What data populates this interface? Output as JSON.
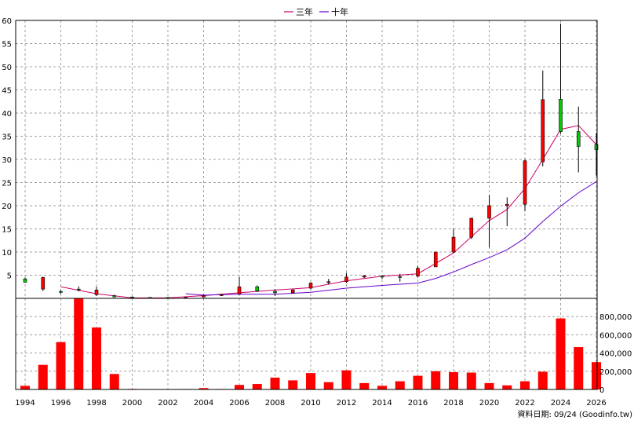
{
  "chart_data": {
    "type": "candlestick+line+bar",
    "legend": [
      {
        "name": "三年",
        "color": "#cc0066"
      },
      {
        "name": "十年",
        "color": "#6600cc"
      }
    ],
    "legend_position": "top-center",
    "grid": true,
    "price_panel": {
      "ylim": [
        0,
        60
      ],
      "yticks": [
        5,
        10,
        15,
        20,
        25,
        30,
        35,
        40,
        45,
        50,
        55,
        60
      ],
      "candles": [
        {
          "year": 1994,
          "open": 4.2,
          "close": 3.5,
          "high": 4.5,
          "low": 3.4
        },
        {
          "year": 1995,
          "open": 2.0,
          "close": 4.5,
          "high": 4.7,
          "low": 1.6
        },
        {
          "year": 1996,
          "open": 1.5,
          "close": 1.3,
          "high": 1.8,
          "low": 1.0
        },
        {
          "year": 1997,
          "open": 2.0,
          "close": 1.8,
          "high": 2.6,
          "low": 1.5
        },
        {
          "year": 1998,
          "open": 0.8,
          "close": 1.8,
          "high": 2.5,
          "low": 0.5
        },
        {
          "year": 1999,
          "open": 0.6,
          "close": 0.3,
          "high": 0.8,
          "low": 0.2
        },
        {
          "year": 2000,
          "open": 0.3,
          "close": 0.2,
          "high": 0.4,
          "low": 0.1
        },
        {
          "year": 2001,
          "open": 0.2,
          "close": 0.1,
          "high": 0.3,
          "low": 0.05
        },
        {
          "year": 2002,
          "open": 0.2,
          "close": 0.1,
          "high": 0.3,
          "low": 0.05
        },
        {
          "year": 2003,
          "open": 0.1,
          "close": 0.2,
          "high": 0.3,
          "low": 0.05
        },
        {
          "year": 2004,
          "open": 0.3,
          "close": 0.6,
          "high": 0.8,
          "low": 0.2
        },
        {
          "year": 2005,
          "open": 0.6,
          "close": 0.8,
          "high": 1.0,
          "low": 0.5
        },
        {
          "year": 2006,
          "open": 1.0,
          "close": 2.5,
          "high": 4.6,
          "low": 0.8
        },
        {
          "year": 2007,
          "open": 2.5,
          "close": 1.6,
          "high": 2.8,
          "low": 1.4
        },
        {
          "year": 2008,
          "open": 1.5,
          "close": 1.2,
          "high": 2.0,
          "low": 0.5
        },
        {
          "year": 2009,
          "open": 1.2,
          "close": 1.8,
          "high": 2.0,
          "low": 1.0
        },
        {
          "year": 2010,
          "open": 2.2,
          "close": 3.3,
          "high": 3.5,
          "low": 2.0
        },
        {
          "year": 2011,
          "open": 3.4,
          "close": 3.6,
          "high": 4.2,
          "low": 3.0
        },
        {
          "year": 2012,
          "open": 3.6,
          "close": 4.6,
          "high": 5.5,
          "low": 3.3
        },
        {
          "year": 2013,
          "open": 4.6,
          "close": 4.9,
          "high": 5.0,
          "low": 4.4
        },
        {
          "year": 2014,
          "open": 4.8,
          "close": 4.6,
          "high": 5.0,
          "low": 4.2
        },
        {
          "year": 2015,
          "open": 4.6,
          "close": 4.7,
          "high": 5.3,
          "low": 3.6
        },
        {
          "year": 2016,
          "open": 4.8,
          "close": 6.5,
          "high": 7.0,
          "low": 4.5
        },
        {
          "year": 2017,
          "open": 6.8,
          "close": 10.0,
          "high": 10.0,
          "low": 6.8
        },
        {
          "year": 2018,
          "open": 10.0,
          "close": 13.2,
          "high": 15.0,
          "low": 9.8
        },
        {
          "year": 2019,
          "open": 13.2,
          "close": 17.3,
          "high": 17.4,
          "low": 12.8
        },
        {
          "year": 2020,
          "open": 17.3,
          "close": 20.0,
          "high": 22.3,
          "low": 11.0
        },
        {
          "year": 2021,
          "open": 20.0,
          "close": 20.3,
          "high": 21.8,
          "low": 15.6
        },
        {
          "year": 2022,
          "open": 20.3,
          "close": 29.7,
          "high": 30.0,
          "low": 18.8
        },
        {
          "year": 2023,
          "open": 29.5,
          "close": 42.9,
          "high": 49.2,
          "low": 28.5
        },
        {
          "year": 2024,
          "open": 43.0,
          "close": 36.0,
          "high": 59.3,
          "low": 35.6
        },
        {
          "year": 2025,
          "open": 36.0,
          "close": 32.8,
          "high": 41.4,
          "low": 27.2
        },
        {
          "year": 2026,
          "open": 33.2,
          "close": 32.1,
          "high": 35.7,
          "low": 26.5
        }
      ],
      "series": [
        {
          "name": "三年",
          "color": "#cc0066",
          "x": [
            1996,
            1998,
            2000,
            2002,
            2004,
            2006,
            2008,
            2010,
            2012,
            2014,
            2016,
            2018,
            2020,
            2021,
            2022,
            2023,
            2024,
            2025,
            2026
          ],
          "y": [
            2.5,
            1.0,
            0.1,
            0.1,
            0.6,
            1.2,
            1.8,
            2.3,
            3.8,
            4.8,
            5.3,
            9.8,
            16.8,
            19.2,
            23.7,
            30.0,
            36.5,
            37.3,
            33.2
          ]
        },
        {
          "name": "十年",
          "color": "#6600cc",
          "x": [
            2003,
            2004,
            2006,
            2008,
            2010,
            2012,
            2014,
            2016,
            2017,
            2018,
            2019,
            2020,
            2021,
            2022,
            2023,
            2024,
            2025,
            2026
          ],
          "y": [
            1.0,
            0.7,
            0.9,
            0.9,
            1.3,
            2.2,
            2.8,
            3.3,
            4.3,
            5.7,
            7.3,
            8.8,
            10.5,
            13.0,
            16.6,
            19.9,
            22.8,
            25.2
          ]
        }
      ]
    },
    "volume_panel": {
      "ylim": [
        0,
        1000000
      ],
      "yticks": [
        0,
        200000,
        400000,
        600000,
        800000
      ],
      "ytick_labels": [
        "0",
        "200,000",
        "400,000",
        "600,000",
        "800,000"
      ],
      "bar_color": "#ff0000",
      "years": [
        1994,
        1995,
        1996,
        1997,
        1998,
        1999,
        2000,
        2001,
        2002,
        2003,
        2004,
        2005,
        2006,
        2007,
        2008,
        2009,
        2010,
        2011,
        2012,
        2013,
        2014,
        2015,
        2016,
        2017,
        2018,
        2019,
        2020,
        2021,
        2022,
        2023,
        2024,
        2025,
        2026
      ],
      "values": [
        40000,
        270000,
        520000,
        1000000,
        680000,
        170000,
        6000,
        3000,
        3000,
        5000,
        15000,
        5000,
        50000,
        60000,
        130000,
        100000,
        180000,
        80000,
        210000,
        70000,
        40000,
        90000,
        150000,
        200000,
        190000,
        185000,
        70000,
        45000,
        90000,
        195000,
        780000,
        465000,
        300000
      ]
    },
    "x_ticks": [
      "1994",
      "1996",
      "1998",
      "2000",
      "2002",
      "2004",
      "2006",
      "2008",
      "2010",
      "2012",
      "2014",
      "2016",
      "2018",
      "2020",
      "2022",
      "2024",
      "2026"
    ],
    "footer": "資料日期: 09/24 (Goodinfo.tw)"
  },
  "colors": {
    "up": "#ff0000",
    "down": "#00cc00",
    "grid": "#a0a0a0",
    "frame": "#000000"
  }
}
